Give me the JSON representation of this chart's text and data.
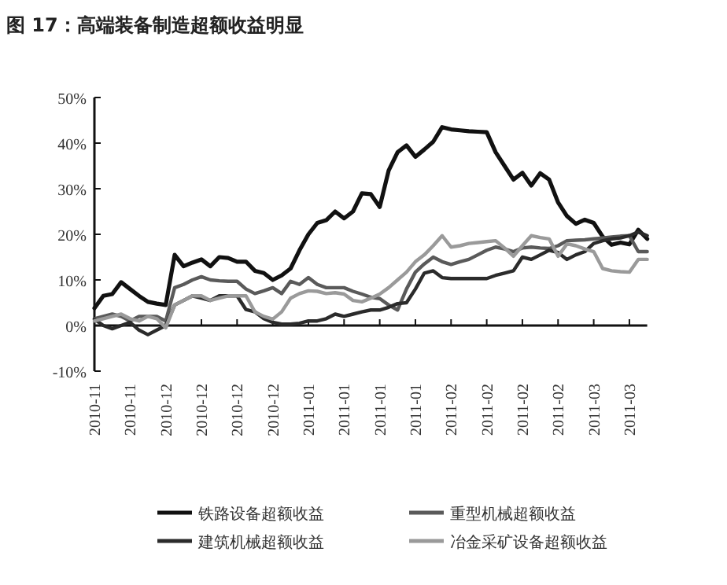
{
  "chart_data": {
    "type": "line",
    "title": "图 17：高端装备制造超额收益明显",
    "categories": [
      "2010-11",
      null,
      null,
      null,
      "2010-11",
      null,
      null,
      null,
      "2010-12",
      null,
      null,
      null,
      "2010-12",
      null,
      null,
      null,
      "2010-12",
      null,
      null,
      null,
      "2010-12",
      null,
      null,
      null,
      "2011-01",
      null,
      null,
      null,
      "2011-01",
      null,
      null,
      null,
      "2011-01",
      null,
      null,
      null,
      "2011-01",
      null,
      null,
      null,
      "2011-02",
      null,
      null,
      null,
      "2011-02",
      null,
      null,
      null,
      "2011-02",
      null,
      null,
      null,
      "2011-02",
      null,
      null,
      null,
      "2011-03",
      null,
      null,
      null,
      "2011-03",
      null,
      null
    ],
    "ylim": [
      -10,
      50
    ],
    "yticks": [
      {
        "value": -10,
        "label": "-10%"
      },
      {
        "value": 0,
        "label": "0%"
      },
      {
        "value": 10,
        "label": "10%"
      },
      {
        "value": 20,
        "label": "20%"
      },
      {
        "value": 30,
        "label": "30%"
      },
      {
        "value": 40,
        "label": "40%"
      },
      {
        "value": 50,
        "label": "50%"
      }
    ],
    "legend": "bottom",
    "marker": "none",
    "line_style": "solid",
    "series": [
      {
        "name": "铁路设备超额收益",
        "color": "#111111",
        "values": [
          3.8,
          6.5,
          6.9,
          9.5,
          8,
          6.5,
          5.2,
          4.8,
          4.5,
          15.5,
          13,
          13.8,
          14.5,
          13,
          15,
          14.8,
          14,
          14,
          12,
          11.5,
          10,
          11,
          12.5,
          16.5,
          20,
          22.5,
          23.1,
          25,
          23.5,
          25,
          29,
          28.8,
          26,
          34,
          38,
          39.5,
          37,
          38.6,
          40.3,
          43.5,
          43,
          42.8,
          42.6,
          42.5,
          42.4,
          38,
          35,
          32,
          33.5,
          30.7,
          33.4,
          32,
          27,
          24,
          22.3,
          23.2,
          22.5,
          19.5,
          17.7,
          18.2,
          17.8,
          21,
          19
        ]
      },
      {
        "name": "重型机械超额收益",
        "color": "#5a5a5a",
        "values": [
          1.5,
          2,
          2.5,
          2,
          1,
          2,
          2,
          2,
          1,
          8.3,
          9,
          10,
          10.7,
          10,
          9.8,
          9.7,
          9.7,
          8,
          7,
          7.6,
          8.3,
          7,
          9.7,
          9,
          10.5,
          9,
          8.3,
          8.3,
          8.3,
          7.5,
          6.9,
          6.2,
          5.9,
          4.5,
          3.4,
          8,
          11.7,
          13.5,
          15,
          14,
          13.4,
          14,
          14.5,
          15.5,
          16.5,
          17.2,
          16.8,
          16.2,
          17,
          17.2,
          17,
          16.9,
          17.5,
          18.6,
          18.7,
          18.8,
          19,
          19.2,
          19.4,
          19.6,
          19.7,
          16.2,
          16.2
        ]
      },
      {
        "name": "建筑机械超额收益",
        "color": "#2b2b2b",
        "values": [
          1.4,
          0,
          -0.7,
          0,
          0.7,
          -1,
          -2,
          -1,
          0,
          4.5,
          5.5,
          6.5,
          6,
          5.5,
          6.5,
          6.5,
          6.5,
          3.5,
          3,
          1.5,
          0.7,
          0.3,
          0.3,
          0.5,
          1,
          1,
          1.5,
          2.5,
          2,
          2.5,
          3,
          3.4,
          3.4,
          4,
          4.8,
          5,
          8,
          11.5,
          12,
          10.5,
          10.3,
          10.3,
          10.3,
          10.3,
          10.3,
          11,
          11.5,
          12,
          15,
          14.5,
          15.5,
          16.5,
          16,
          14.5,
          15.5,
          16.2,
          18,
          18.6,
          19,
          19.2,
          19.7,
          20.5,
          19.7
        ]
      },
      {
        "name": "冶金采矿设备超额收益",
        "color": "#9a9a9a",
        "values": [
          1,
          1.5,
          2,
          2.5,
          1.5,
          1,
          2,
          1.5,
          -0.5,
          4.5,
          5.5,
          6.5,
          6.5,
          5.5,
          6,
          6.5,
          6.5,
          6.5,
          3,
          2,
          1.4,
          3,
          6,
          7,
          7.6,
          7.5,
          7,
          7.2,
          6.9,
          5.5,
          5.2,
          6,
          6.9,
          8.3,
          10,
          11.7,
          14,
          15.5,
          17.5,
          19.7,
          17.2,
          17.5,
          18,
          18.2,
          18.4,
          18.6,
          17,
          15.2,
          17.5,
          19.7,
          19.3,
          19,
          15.2,
          17.9,
          17.5,
          16.8,
          16.2,
          12.5,
          12,
          11.8,
          11.7,
          14.5,
          14.5
        ]
      }
    ]
  }
}
